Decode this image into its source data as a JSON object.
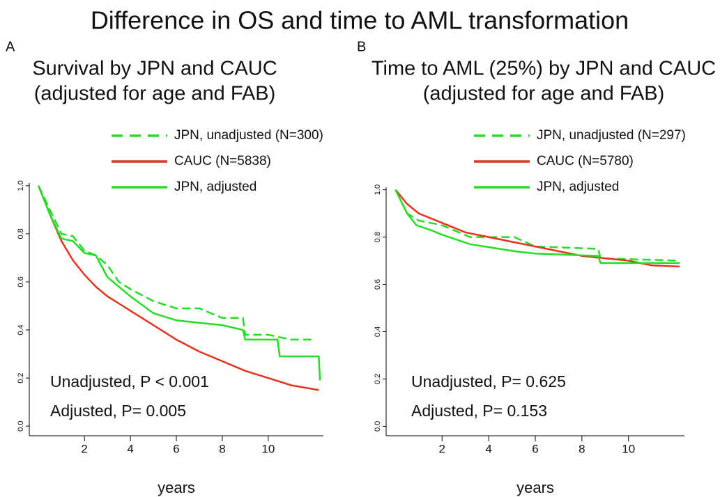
{
  "title": "Difference in OS and time to AML transformation",
  "chart_data": [
    {
      "type": "line",
      "panel": "A",
      "title": [
        "Survival by JPN and CAUC",
        "(adjusted for age and FAB)"
      ],
      "xlabel": "years",
      "annotations": [
        "Unadjusted, P < 0.001",
        "Adjusted, P= 0.005"
      ],
      "xlim": [
        -0.4,
        12.4
      ],
      "xticks": [
        2,
        4,
        6,
        8,
        10
      ],
      "ylim": [
        -0.04,
        1.04
      ],
      "yticks": [
        {
          "value": 0,
          "label": "0.0"
        },
        0.2,
        0.4,
        0.6,
        0.8,
        {
          "value": 1,
          "label": "1.0"
        }
      ],
      "series": [
        {
          "name": "JPN, unadjusted (N=300)",
          "color": "#22dd22",
          "style": "dashed",
          "x": [
            0,
            0.5,
            1,
            1.5,
            2,
            2.5,
            3,
            3.5,
            4,
            5,
            6,
            7,
            8,
            8.9,
            9,
            10,
            11,
            12
          ],
          "values": [
            1,
            0.9,
            0.8,
            0.79,
            0.73,
            0.71,
            0.67,
            0.6,
            0.57,
            0.52,
            0.49,
            0.49,
            0.45,
            0.45,
            0.38,
            0.38,
            0.36,
            0.36
          ]
        },
        {
          "name": "CAUC (N=5838)",
          "color": "#e8321e",
          "style": "solid",
          "x": [
            0,
            0.5,
            1,
            1.5,
            2,
            2.5,
            3,
            3.5,
            4,
            5,
            6,
            7,
            8,
            9,
            10,
            11,
            12.2
          ],
          "values": [
            1,
            0.88,
            0.77,
            0.69,
            0.63,
            0.58,
            0.54,
            0.51,
            0.48,
            0.42,
            0.36,
            0.31,
            0.27,
            0.23,
            0.2,
            0.17,
            0.15
          ]
        },
        {
          "name": "JPN, adjusted",
          "color": "#22dd22",
          "style": "solid",
          "x": [
            0,
            0.5,
            1,
            1.5,
            2,
            2.5,
            3,
            3.5,
            4,
            5,
            6,
            7,
            8,
            8.9,
            9,
            10.4,
            10.5,
            12.2,
            12.25
          ],
          "values": [
            1,
            0.88,
            0.78,
            0.77,
            0.72,
            0.71,
            0.62,
            0.58,
            0.54,
            0.47,
            0.44,
            0.43,
            0.42,
            0.4,
            0.36,
            0.36,
            0.29,
            0.29,
            0.19
          ]
        }
      ]
    },
    {
      "type": "line",
      "panel": "B",
      "title": [
        "Time to AML (25%) by JPN and CAUC",
        "(adjusted for age and FAB)"
      ],
      "xlabel": "years",
      "annotations": [
        "Unadjusted, P= 0.625",
        "Adjusted, P= 0.153"
      ],
      "xlim": [
        -0.4,
        12.4
      ],
      "xticks": [
        2,
        4,
        6,
        8,
        10
      ],
      "ylim": [
        -0.04,
        1.04
      ],
      "yticks": [
        {
          "value": 0,
          "label": "0.0"
        },
        0.2,
        0.4,
        0.6,
        0.8,
        {
          "value": 1,
          "label": "1.0"
        }
      ],
      "series": [
        {
          "name": "JPN, unadjusted (N=297)",
          "color": "#22dd22",
          "style": "dashed",
          "x": [
            0,
            0.5,
            1,
            2,
            3.2,
            5.1,
            6,
            8.7,
            8.8,
            12.2
          ],
          "values": [
            1,
            0.9,
            0.87,
            0.85,
            0.8,
            0.8,
            0.76,
            0.75,
            0.71,
            0.7
          ]
        },
        {
          "name": "CAUC (N=5780)",
          "color": "#e8321e",
          "style": "solid",
          "x": [
            0,
            0.5,
            1,
            2,
            3,
            4,
            5,
            6,
            7,
            8,
            9,
            10,
            11,
            12.2
          ],
          "values": [
            1,
            0.94,
            0.9,
            0.86,
            0.82,
            0.8,
            0.78,
            0.76,
            0.74,
            0.72,
            0.71,
            0.7,
            0.68,
            0.675
          ]
        },
        {
          "name": "JPN, adjusted",
          "color": "#22dd22",
          "style": "solid",
          "x": [
            0,
            0.5,
            0.9,
            1.5,
            2,
            3.2,
            5.1,
            6,
            8.7,
            8.8,
            12.2
          ],
          "values": [
            1,
            0.9,
            0.85,
            0.83,
            0.81,
            0.77,
            0.74,
            0.73,
            0.72,
            0.69,
            0.69
          ]
        }
      ]
    }
  ]
}
